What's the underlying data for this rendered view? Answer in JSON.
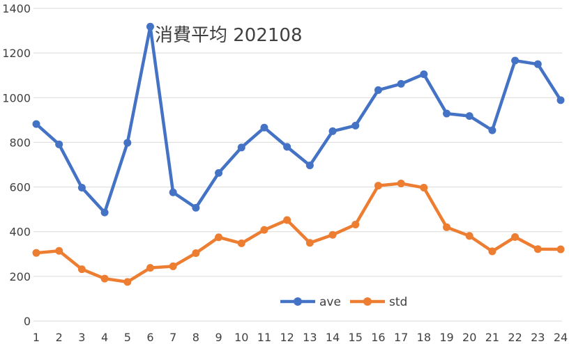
{
  "chart_data": {
    "type": "line",
    "title": "消費平均 202108",
    "xlabel": "",
    "ylabel": "",
    "categories": [
      "1",
      "2",
      "3",
      "4",
      "5",
      "6",
      "7",
      "8",
      "9",
      "10",
      "11",
      "12",
      "13",
      "14",
      "15",
      "16",
      "17",
      "18",
      "19",
      "20",
      "21",
      "22",
      "23",
      "24"
    ],
    "ylim": [
      0,
      1400
    ],
    "yticks": [
      "0",
      "200",
      "400",
      "600",
      "800",
      "1000",
      "1200",
      "1400"
    ],
    "grid": true,
    "legend_position": "bottom-center",
    "series": [
      {
        "name": "ave",
        "color": "#4472C4",
        "values": [
          882,
          791,
          597,
          486,
          798,
          1318,
          576,
          507,
          663,
          777,
          866,
          780,
          697,
          850,
          875,
          1034,
          1062,
          1105,
          929,
          918,
          854,
          1166,
          1150,
          989
        ]
      },
      {
        "name": "std",
        "color": "#ED7D31",
        "values": [
          305,
          314,
          232,
          190,
          175,
          238,
          245,
          304,
          375,
          348,
          408,
          452,
          350,
          386,
          432,
          606,
          616,
          597,
          420,
          381,
          312,
          376,
          322,
          321
        ]
      }
    ]
  }
}
